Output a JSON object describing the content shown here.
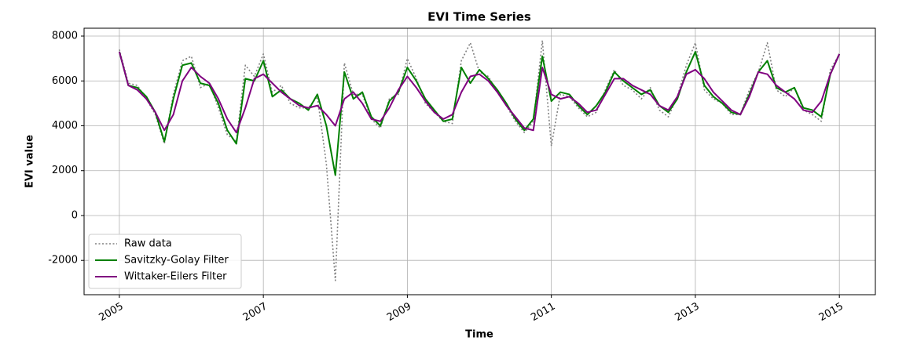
{
  "chart_data": {
    "type": "line",
    "title": "EVI Time Series",
    "xlabel": "Time",
    "ylabel": "EVI value",
    "x": [
      2005,
      2005.125,
      2005.25,
      2005.375,
      2005.5,
      2005.625,
      2005.75,
      2005.875,
      2006,
      2006.125,
      2006.25,
      2006.375,
      2006.5,
      2006.625,
      2006.75,
      2006.875,
      2007,
      2007.125,
      2007.25,
      2007.375,
      2007.5,
      2007.625,
      2007.75,
      2007.875,
      2008,
      2008.125,
      2008.25,
      2008.375,
      2008.5,
      2008.625,
      2008.75,
      2008.875,
      2009,
      2009.125,
      2009.25,
      2009.375,
      2009.5,
      2009.625,
      2009.75,
      2009.875,
      2010,
      2010.125,
      2010.25,
      2010.375,
      2010.5,
      2010.625,
      2010.75,
      2010.875,
      2011,
      2011.125,
      2011.25,
      2011.375,
      2011.5,
      2011.625,
      2011.75,
      2011.875,
      2012,
      2012.125,
      2012.25,
      2012.375,
      2012.5,
      2012.625,
      2012.75,
      2012.875,
      2013,
      2013.125,
      2013.25,
      2013.375,
      2013.5,
      2013.625,
      2013.75,
      2013.875,
      2014,
      2014.125,
      2014.25,
      2014.375,
      2014.5,
      2014.625,
      2014.75,
      2014.875,
      2015
    ],
    "series": [
      {
        "name": "Raw data",
        "color": "#808080",
        "style": "dotted",
        "values": [
          7400,
          5900,
          5800,
          5200,
          4500,
          3200,
          5400,
          6900,
          7100,
          5700,
          5900,
          4800,
          3600,
          3300,
          6700,
          6200,
          7200,
          5500,
          5800,
          5000,
          4800,
          4800,
          5300,
          2300,
          -2900,
          6800,
          5400,
          5400,
          4300,
          3900,
          5200,
          5400,
          7000,
          6100,
          5000,
          4600,
          4200,
          4100,
          6900,
          7700,
          6400,
          6200,
          5500,
          4900,
          4200,
          3700,
          4200,
          7800,
          3100,
          5400,
          5300,
          4800,
          4400,
          4600,
          5600,
          6500,
          5800,
          5600,
          5200,
          5700,
          4700,
          4400,
          5300,
          6700,
          7700,
          5600,
          5200,
          5000,
          4500,
          4500,
          5600,
          6400,
          7700,
          5600,
          5300,
          5700,
          4700,
          4500,
          4200,
          6500,
          7200
        ]
      },
      {
        "name": "Savitzky-Golay Filter",
        "color": "#008000",
        "style": "solid",
        "values": [
          7300,
          5800,
          5700,
          5300,
          4600,
          3300,
          5200,
          6700,
          6800,
          5900,
          5800,
          5000,
          3800,
          3200,
          6100,
          6000,
          6900,
          5300,
          5600,
          5200,
          5000,
          4700,
          5400,
          4000,
          1800,
          6400,
          5200,
          5500,
          4400,
          4000,
          5100,
          5500,
          6600,
          6000,
          5200,
          4700,
          4200,
          4300,
          6600,
          5900,
          6500,
          6100,
          5600,
          5000,
          4300,
          3800,
          4300,
          7100,
          5100,
          5500,
          5400,
          4900,
          4500,
          4900,
          5500,
          6400,
          6000,
          5700,
          5400,
          5600,
          4900,
          4600,
          5200,
          6400,
          7300,
          5800,
          5300,
          5000,
          4600,
          4500,
          5400,
          6400,
          6900,
          5700,
          5500,
          5700,
          4800,
          4700,
          4400,
          6300,
          7200
        ]
      },
      {
        "name": "Wittaker-Eilers Filter",
        "color": "#800080",
        "style": "solid",
        "values": [
          7300,
          5800,
          5600,
          5200,
          4600,
          3800,
          4500,
          6000,
          6600,
          6200,
          5900,
          5200,
          4300,
          3700,
          4800,
          6100,
          6300,
          5900,
          5500,
          5200,
          4900,
          4800,
          4900,
          4500,
          4000,
          5200,
          5500,
          5000,
          4300,
          4200,
          4800,
          5600,
          6200,
          5700,
          5100,
          4600,
          4300,
          4500,
          5500,
          6200,
          6300,
          6000,
          5500,
          4900,
          4400,
          3900,
          3800,
          6600,
          5400,
          5200,
          5300,
          5000,
          4600,
          4700,
          5400,
          6100,
          6100,
          5800,
          5600,
          5400,
          4900,
          4700,
          5300,
          6300,
          6500,
          6100,
          5500,
          5100,
          4700,
          4500,
          5300,
          6400,
          6300,
          5800,
          5500,
          5200,
          4700,
          4600,
          5100,
          6300,
          7200
        ]
      }
    ],
    "xlim": [
      2004.51,
      2015.5
    ],
    "xticks": [
      2005,
      2007,
      2009,
      2011,
      2013,
      2015
    ],
    "ylim": [
      -3530,
      8350
    ],
    "yticks": [
      -2000,
      0,
      2000,
      4000,
      6000,
      8000
    ],
    "grid": true,
    "legend": "lower left"
  }
}
